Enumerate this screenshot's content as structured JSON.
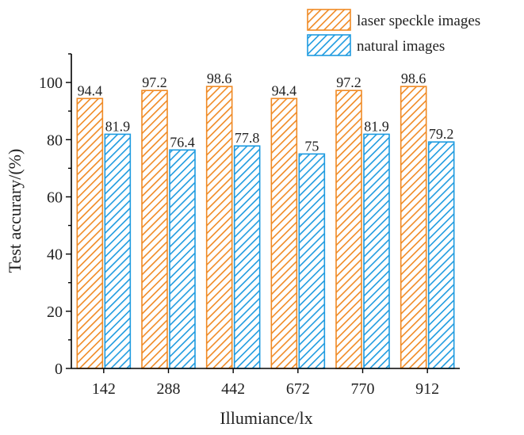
{
  "chart_data": {
    "type": "bar",
    "title": "",
    "xlabel": "Illumiance/lx",
    "ylabel": "Test accurary/(%)",
    "categories": [
      "142",
      "288",
      "442",
      "672",
      "770",
      "912"
    ],
    "series": [
      {
        "name": "laser speckle images",
        "values": [
          94.4,
          97.2,
          98.6,
          94.4,
          97.2,
          98.6
        ],
        "color": "#F08A24",
        "hatch": "#F08A24"
      },
      {
        "name": "natural images",
        "values": [
          81.9,
          76.4,
          77.8,
          75,
          81.9,
          79.2
        ],
        "color": "#1E9BE0",
        "hatch": "#1E9BE0"
      }
    ],
    "ylim": [
      0,
      110
    ],
    "yticks": [
      0,
      20,
      40,
      60,
      80,
      100
    ],
    "grid": false,
    "legend": "top-right",
    "data_labels": true
  }
}
